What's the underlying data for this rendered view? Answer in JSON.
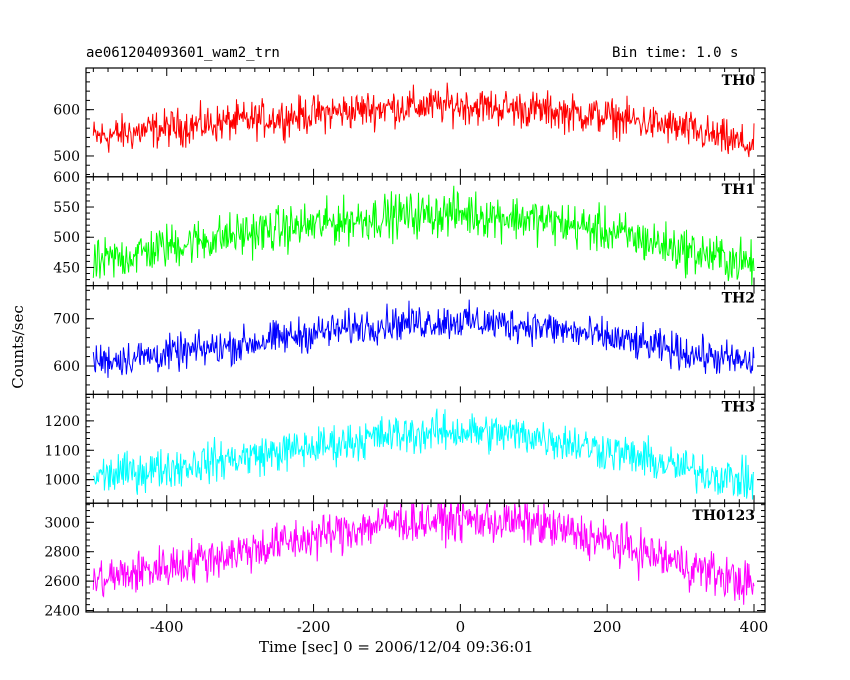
{
  "header": {
    "title": "ae061204093601_wam2_trn",
    "bin_time": "Bin time: 1.0 s"
  },
  "chart_data": {
    "type": "line",
    "xlabel": "Time [sec] 0 = 2006/12/04 09:36:01",
    "ylabel": "Counts/sec",
    "xlim": [
      -510,
      415
    ],
    "xticks": [
      -400,
      -200,
      0,
      200,
      400
    ],
    "panels": [
      {
        "name": "TH0",
        "color": "#ff0000",
        "ylim": [
          455,
          690
        ],
        "yticks": [
          500,
          600
        ],
        "x": [
          -500,
          -400,
          -300,
          -200,
          -100,
          0,
          100,
          200,
          300,
          400
        ],
        "values": [
          540,
          560,
          575,
          590,
          605,
          610,
          600,
          585,
          560,
          520
        ],
        "noise": 60
      },
      {
        "name": "TH1",
        "color": "#00ff00",
        "ylim": [
          420,
          600
        ],
        "yticks": [
          450,
          500,
          550,
          600
        ],
        "x": [
          -500,
          -400,
          -300,
          -200,
          -100,
          0,
          100,
          200,
          300,
          400
        ],
        "values": [
          455,
          485,
          505,
          520,
          535,
          540,
          530,
          510,
          480,
          455
        ],
        "noise": 55
      },
      {
        "name": "TH2",
        "color": "#0000ff",
        "ylim": [
          540,
          770
        ],
        "yticks": [
          600,
          700
        ],
        "x": [
          -500,
          -400,
          -300,
          -200,
          -100,
          0,
          100,
          200,
          300,
          400
        ],
        "values": [
          610,
          625,
          645,
          670,
          690,
          695,
          685,
          660,
          630,
          605
        ],
        "noise": 55
      },
      {
        "name": "TH3",
        "color": "#00ffff",
        "ylim": [
          920,
          1290
        ],
        "yticks": [
          1000,
          1100,
          1200
        ],
        "x": [
          -500,
          -400,
          -300,
          -200,
          -100,
          0,
          100,
          200,
          300,
          400
        ],
        "values": [
          1010,
          1040,
          1075,
          1110,
          1150,
          1165,
          1150,
          1100,
          1040,
          990
        ],
        "noise": 100
      },
      {
        "name": "TH0123",
        "color": "#ff00ff",
        "ylim": [
          2390,
          3130
        ],
        "yticks": [
          2400,
          2600,
          2800,
          3000
        ],
        "x": [
          -500,
          -400,
          -300,
          -200,
          -100,
          0,
          100,
          200,
          300,
          400
        ],
        "values": [
          2600,
          2700,
          2800,
          2900,
          3000,
          3020,
          2990,
          2870,
          2720,
          2570
        ],
        "noise": 220
      }
    ]
  }
}
